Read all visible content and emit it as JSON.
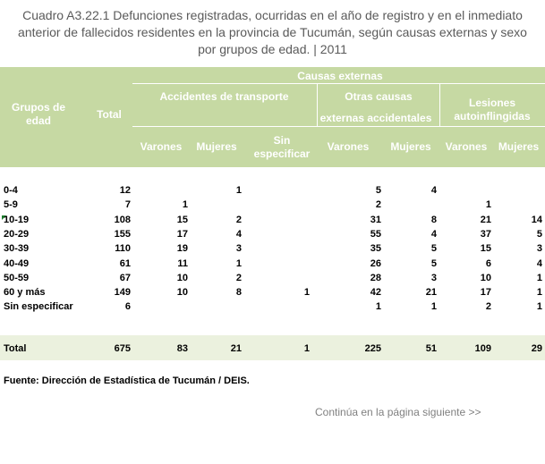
{
  "title_lines": [
    "Cuadro A3.22.1 Defunciones registradas, ocurridas en el año de registro y en el inmediato",
    "anterior de fallecidos residentes en la provincia de Tucumán, según  causas externas y sexo",
    "por grupos de edad. | 2011"
  ],
  "header": {
    "grupos_de_edad": "Grupos de edad",
    "total": "Total",
    "causas_externas": "Causas externas",
    "accidentes_de_transporte": "Accidentes de transporte",
    "otras_causas_line1": "Otras causas",
    "otras_causas_line2": "externas accidentales",
    "lesiones": "Lesiones autoinflingidas",
    "varones": "Varones",
    "mujeres": "Mujeres",
    "sin_especificar": "Sin especificar"
  },
  "rows": [
    {
      "label": "0-4",
      "values": [
        "12",
        "",
        "1",
        "",
        "5",
        "4",
        "",
        ""
      ]
    },
    {
      "label": "5-9",
      "values": [
        "7",
        "1",
        "",
        "",
        "2",
        "",
        "1",
        ""
      ]
    },
    {
      "label": "10-19",
      "values": [
        "108",
        "15",
        "2",
        "",
        "31",
        "8",
        "21",
        "14"
      ]
    },
    {
      "label": "20-29",
      "values": [
        "155",
        "17",
        "4",
        "",
        "55",
        "4",
        "37",
        "5"
      ]
    },
    {
      "label": "30-39",
      "values": [
        "110",
        "19",
        "3",
        "",
        "35",
        "5",
        "15",
        "3"
      ]
    },
    {
      "label": "40-49",
      "values": [
        "61",
        "11",
        "1",
        "",
        "26",
        "5",
        "6",
        "4"
      ]
    },
    {
      "label": "50-59",
      "values": [
        "67",
        "10",
        "2",
        "",
        "28",
        "3",
        "10",
        "1"
      ]
    },
    {
      "label": "60 y más",
      "values": [
        "149",
        "10",
        "8",
        "1",
        "42",
        "21",
        "17",
        "1"
      ]
    },
    {
      "label": "Sin especificar",
      "values": [
        "6",
        "",
        "",
        "",
        "1",
        "1",
        "2",
        "1"
      ]
    }
  ],
  "total_row": {
    "label": "Total",
    "values": [
      "675",
      "83",
      "21",
      "1",
      "225",
      "51",
      "109",
      "29"
    ]
  },
  "source": "Fuente: Dirección de Estadística de Tucumán / DEIS.",
  "continue_text": "Continúa en la página siguiente >>"
}
